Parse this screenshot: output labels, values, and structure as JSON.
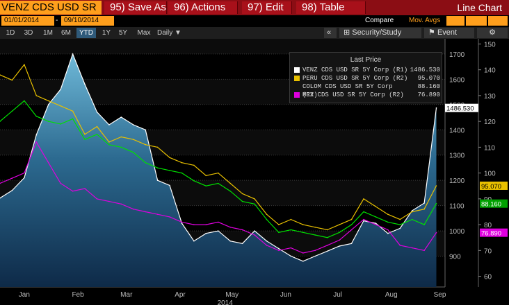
{
  "toolbar": {
    "security": "VENZ CDS USD SR 5Y",
    "buttons": [
      "95) Save As",
      "96) Actions",
      "97) Edit",
      "98) Table"
    ],
    "chart_label": "Line Chart"
  },
  "dates": {
    "start": "01/01/2014",
    "sep": "-",
    "end": "09/10/2014"
  },
  "compare": "Compare",
  "mov_avgs": "Mov. Avgs",
  "periods": [
    "1D",
    "3D",
    "1M",
    "6M",
    "YTD",
    "1Y",
    "5Y",
    "Max"
  ],
  "active_period": "YTD",
  "frequency": "Daily",
  "security_study": "Security/Study",
  "event": "Event",
  "legend": {
    "title": "Last Price",
    "rows": [
      {
        "name": "VENZ CDS USD SR 5Y Corp  (R1)",
        "value": "1486.530",
        "color": "#ffffff"
      },
      {
        "name": "PERU CDS USD SR 5Y Corp  (R2)",
        "value": "95.070",
        "color": "#e8c000"
      },
      {
        "name": "COLOM CDS USD SR 5Y Corp  (R2)",
        "value": "88.160",
        "color": "#00e000"
      },
      {
        "name": "MEX CDS USD SR 5Y Corp  (R2)",
        "value": "76.890",
        "color": "#e000e0"
      }
    ]
  },
  "chart_data": {
    "type": "line",
    "x_month_labels": [
      "Jan",
      "Feb",
      "Mar",
      "Apr",
      "May",
      "Jun",
      "Jul",
      "Aug",
      "Sep"
    ],
    "x_year_label": "2014",
    "x_range": [
      "01/01/2014",
      "09/10/2014"
    ],
    "r1_axis": {
      "ticks": [
        900,
        1000,
        1100,
        1200,
        1300,
        1400,
        1500,
        1600,
        1700
      ],
      "range": [
        800,
        1760
      ]
    },
    "r2_axis": {
      "ticks": [
        60,
        70,
        80,
        90,
        100,
        110,
        120,
        130,
        140,
        150
      ],
      "range": [
        58,
        152
      ]
    },
    "last_value_tags": [
      {
        "axis": "R1",
        "value": 1486.53,
        "text": "1486.530",
        "bg": "#ffffff",
        "fg": "#000000"
      },
      {
        "axis": "R2",
        "value": 95.07,
        "text": "95.070",
        "bg": "#e8c000",
        "fg": "#000000"
      },
      {
        "axis": "R2",
        "value": 88.16,
        "text": "88.160",
        "bg": "#00a000",
        "fg": "#ffffff"
      },
      {
        "axis": "R2",
        "value": 76.89,
        "text": "76.890",
        "bg": "#e000e0",
        "fg": "#ffffff"
      }
    ],
    "series": [
      {
        "name": "VENZ CDS USD SR 5Y Corp",
        "axis": "R1",
        "color": "#ffffff",
        "fill": true,
        "x": [
          "2014-01-01",
          "2014-01-08",
          "2014-01-15",
          "2014-01-22",
          "2014-01-29",
          "2014-02-05",
          "2014-02-12",
          "2014-02-19",
          "2014-02-26",
          "2014-03-05",
          "2014-03-12",
          "2014-03-19",
          "2014-03-26",
          "2014-04-02",
          "2014-04-09",
          "2014-04-16",
          "2014-04-23",
          "2014-04-30",
          "2014-05-07",
          "2014-05-14",
          "2014-05-21",
          "2014-05-28",
          "2014-06-04",
          "2014-06-11",
          "2014-06-18",
          "2014-06-25",
          "2014-07-02",
          "2014-07-09",
          "2014-07-16",
          "2014-07-23",
          "2014-07-30",
          "2014-08-06",
          "2014-08-13",
          "2014-08-20",
          "2014-08-27",
          "2014-09-03",
          "2014-09-10"
        ],
        "y": [
          1130,
          1160,
          1210,
          1380,
          1500,
          1560,
          1700,
          1580,
          1470,
          1420,
          1450,
          1420,
          1400,
          1200,
          1180,
          1030,
          960,
          990,
          1000,
          960,
          950,
          1000,
          960,
          930,
          900,
          880,
          900,
          920,
          940,
          950,
          1040,
          1030,
          990,
          1010,
          1080,
          1110,
          1486.53
        ]
      },
      {
        "name": "PERU CDS USD SR 5Y Corp",
        "axis": "R2",
        "color": "#e8c000",
        "x": [
          "2014-01-01",
          "2014-01-08",
          "2014-01-15",
          "2014-01-22",
          "2014-01-29",
          "2014-02-05",
          "2014-02-12",
          "2014-02-19",
          "2014-02-26",
          "2014-03-05",
          "2014-03-12",
          "2014-03-19",
          "2014-03-26",
          "2014-04-02",
          "2014-04-09",
          "2014-04-16",
          "2014-04-23",
          "2014-04-30",
          "2014-05-07",
          "2014-05-14",
          "2014-05-21",
          "2014-05-28",
          "2014-06-04",
          "2014-06-11",
          "2014-06-18",
          "2014-06-25",
          "2014-07-02",
          "2014-07-09",
          "2014-07-16",
          "2014-07-23",
          "2014-07-30",
          "2014-08-06",
          "2014-08-13",
          "2014-08-20",
          "2014-08-27",
          "2014-09-03",
          "2014-09-10"
        ],
        "y": [
          138,
          136,
          142,
          130,
          128,
          126,
          124,
          115,
          118,
          112,
          114,
          113,
          111,
          110,
          106,
          104,
          103,
          99,
          100,
          96,
          92,
          90,
          84,
          80,
          82,
          80,
          79,
          78,
          80,
          82,
          90,
          87,
          84,
          82,
          85,
          86,
          95.07
        ]
      },
      {
        "name": "COLOM CDS USD SR 5Y Corp",
        "axis": "R2",
        "color": "#00e000",
        "x": [
          "2014-01-01",
          "2014-01-08",
          "2014-01-15",
          "2014-01-22",
          "2014-01-29",
          "2014-02-05",
          "2014-02-12",
          "2014-02-19",
          "2014-02-26",
          "2014-03-05",
          "2014-03-12",
          "2014-03-19",
          "2014-03-26",
          "2014-04-02",
          "2014-04-09",
          "2014-04-16",
          "2014-04-23",
          "2014-04-30",
          "2014-05-07",
          "2014-05-14",
          "2014-05-21",
          "2014-05-28",
          "2014-06-04",
          "2014-06-11",
          "2014-06-18",
          "2014-06-25",
          "2014-07-02",
          "2014-07-09",
          "2014-07-16",
          "2014-07-23",
          "2014-07-30",
          "2014-08-06",
          "2014-08-13",
          "2014-08-20",
          "2014-08-27",
          "2014-09-03",
          "2014-09-10"
        ],
        "y": [
          120,
          124,
          128,
          122,
          120,
          119,
          121,
          113,
          115,
          111,
          110,
          108,
          104,
          102,
          101,
          100,
          97,
          95,
          96,
          93,
          89,
          88,
          82,
          77,
          78,
          77,
          76,
          75,
          77,
          80,
          85,
          83,
          81,
          80,
          82,
          80,
          88.16
        ]
      },
      {
        "name": "MEX CDS USD SR 5Y Corp",
        "axis": "R2",
        "color": "#e000e0",
        "x": [
          "2014-01-01",
          "2014-01-08",
          "2014-01-15",
          "2014-01-22",
          "2014-01-29",
          "2014-02-05",
          "2014-02-12",
          "2014-02-19",
          "2014-02-26",
          "2014-03-05",
          "2014-03-12",
          "2014-03-19",
          "2014-03-26",
          "2014-04-02",
          "2014-04-09",
          "2014-04-16",
          "2014-04-23",
          "2014-04-30",
          "2014-05-07",
          "2014-05-14",
          "2014-05-21",
          "2014-05-28",
          "2014-06-04",
          "2014-06-11",
          "2014-06-18",
          "2014-06-25",
          "2014-07-02",
          "2014-07-09",
          "2014-07-16",
          "2014-07-23",
          "2014-07-30",
          "2014-08-06",
          "2014-08-13",
          "2014-08-20",
          "2014-08-27",
          "2014-09-03",
          "2014-09-10"
        ],
        "y": [
          96,
          98,
          100,
          112,
          104,
          96,
          93,
          94,
          90,
          89,
          88,
          86,
          85,
          84,
          83,
          81,
          80,
          80,
          81,
          79,
          78,
          76,
          72,
          70,
          71,
          69,
          70,
          72,
          74,
          78,
          82,
          80,
          78,
          72,
          71,
          70,
          76.89
        ]
      }
    ]
  }
}
